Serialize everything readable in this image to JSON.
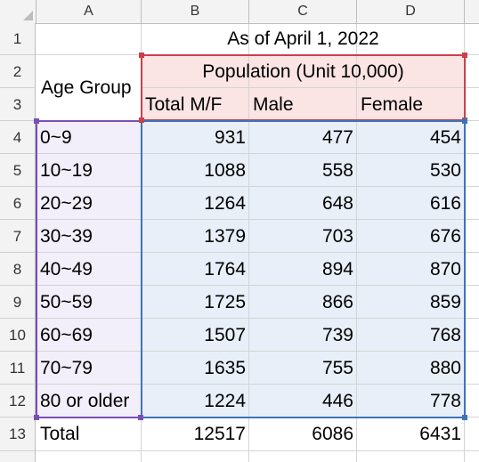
{
  "columns": [
    "A",
    "B",
    "C",
    "D"
  ],
  "rows": [
    "1",
    "2",
    "3",
    "4",
    "5",
    "6",
    "7",
    "8",
    "9",
    "10",
    "11",
    "12",
    "13"
  ],
  "header": {
    "as_of": "As of April 1, 2022",
    "population_unit": "Population (Unit 10,000)",
    "age_group": "Age Group",
    "total_mf": "Total M/F",
    "male": "Male",
    "female": "Female"
  },
  "table": {
    "rows": [
      {
        "age": "0~9",
        "total": "931",
        "male": "477",
        "female": "454"
      },
      {
        "age": "10~19",
        "total": "1088",
        "male": "558",
        "female": "530"
      },
      {
        "age": "20~29",
        "total": "1264",
        "male": "648",
        "female": "616"
      },
      {
        "age": "30~39",
        "total": "1379",
        "male": "703",
        "female": "676"
      },
      {
        "age": "40~49",
        "total": "1764",
        "male": "894",
        "female": "870"
      },
      {
        "age": "50~59",
        "total": "1725",
        "male": "866",
        "female": "859"
      },
      {
        "age": "60~69",
        "total": "1507",
        "male": "739",
        "female": "768"
      },
      {
        "age": "70~79",
        "total": "1635",
        "male": "755",
        "female": "880"
      },
      {
        "age": "80 or older",
        "total": "1224",
        "male": "446",
        "female": "778"
      }
    ],
    "total": {
      "age": "Total",
      "total": "12517",
      "male": "6086",
      "female": "6431"
    }
  },
  "colors": {
    "pink_fill": "#fbe4e4",
    "pink_border": "#c8414b",
    "purple_fill": "#f2eefa",
    "purple_border": "#7a4fb5",
    "blue_fill": "#e8eff8",
    "blue_border": "#3f73b8"
  }
}
